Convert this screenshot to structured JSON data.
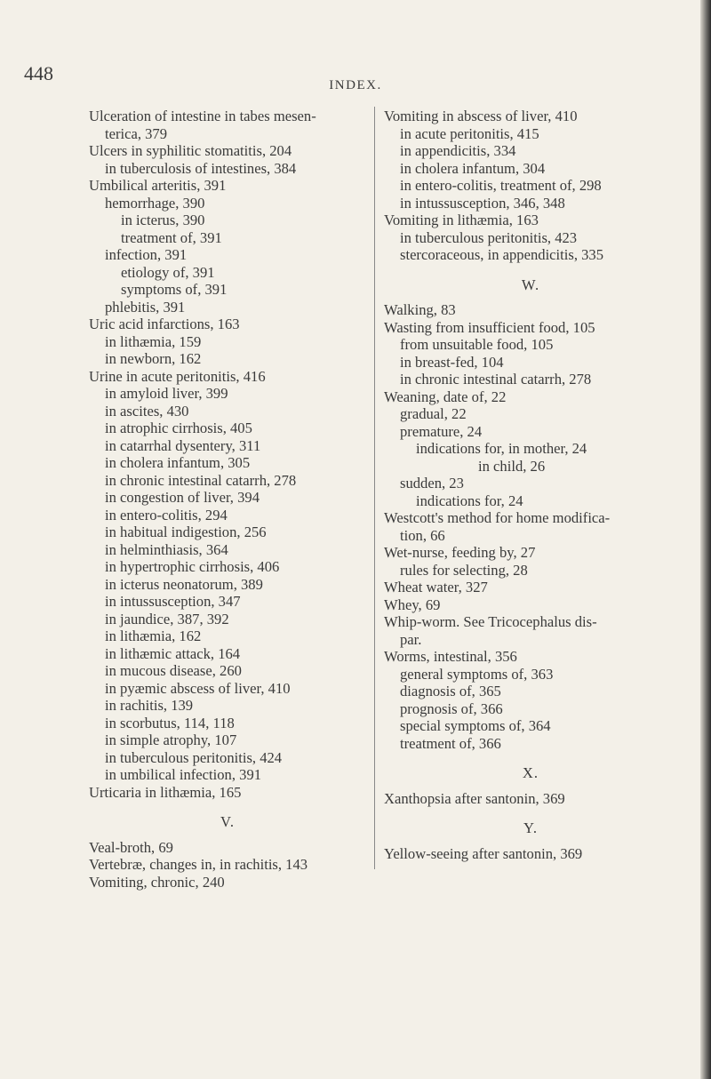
{
  "header": {
    "page_number": "448",
    "title": "INDEX."
  },
  "columns": [
    [
      {
        "lines": [
          "Ulceration of intestine in tabes mesen-",
          "terica, 379"
        ]
      },
      {
        "lines": [
          "Ulcers in syphilitic stomatitis, 204"
        ],
        "sub": [
          {
            "lines": [
              "in tuberculosis of intestines, 384"
            ]
          }
        ]
      },
      {
        "lines": [
          "Umbilical arteritis, 391"
        ],
        "sub": [
          {
            "lines": [
              "hemorrhage, 390"
            ],
            "sub": [
              {
                "lines": [
                  "in icterus, 390"
                ]
              },
              {
                "lines": [
                  "treatment of, 391"
                ]
              }
            ]
          },
          {
            "lines": [
              "infection, 391"
            ],
            "sub": [
              {
                "lines": [
                  "etiology of, 391"
                ]
              },
              {
                "lines": [
                  "symptoms of, 391"
                ]
              }
            ]
          },
          {
            "lines": [
              "phlebitis, 391"
            ]
          }
        ]
      },
      {
        "lines": [
          "Uric acid infarctions, 163"
        ],
        "sub": [
          {
            "lines": [
              "in lithæmia, 159"
            ]
          },
          {
            "lines": [
              "in newborn, 162"
            ]
          }
        ]
      },
      {
        "lines": [
          "Urine in acute peritonitis, 416"
        ],
        "sub": [
          {
            "lines": [
              "in amyloid liver, 399"
            ]
          },
          {
            "lines": [
              "in ascites, 430"
            ]
          },
          {
            "lines": [
              "in atrophic cirrhosis, 405"
            ]
          },
          {
            "lines": [
              "in catarrhal dysentery, 311"
            ]
          },
          {
            "lines": [
              "in cholera infantum, 305"
            ]
          },
          {
            "lines": [
              "in chronic intestinal catarrh, 278"
            ]
          },
          {
            "lines": [
              "in congestion of liver, 394"
            ]
          },
          {
            "lines": [
              "in entero-colitis, 294"
            ]
          },
          {
            "lines": [
              "in habitual indigestion, 256"
            ]
          },
          {
            "lines": [
              "in helminthiasis, 364"
            ]
          },
          {
            "lines": [
              "in hypertrophic cirrhosis, 406"
            ]
          },
          {
            "lines": [
              "in icterus neonatorum, 389"
            ]
          },
          {
            "lines": [
              "in intussusception, 347"
            ]
          },
          {
            "lines": [
              "in jaundice, 387, 392"
            ]
          },
          {
            "lines": [
              "in lithæmia, 162"
            ]
          },
          {
            "lines": [
              "in lithæmic attack, 164"
            ]
          },
          {
            "lines": [
              "in mucous disease, 260"
            ]
          },
          {
            "lines": [
              "in pyæmic abscess of liver, 410"
            ]
          },
          {
            "lines": [
              "in rachitis, 139"
            ]
          },
          {
            "lines": [
              "in scorbutus, 114, 118"
            ]
          },
          {
            "lines": [
              "in simple atrophy, 107"
            ]
          },
          {
            "lines": [
              "in tuberculous peritonitis, 424"
            ]
          },
          {
            "lines": [
              "in umbilical infection, 391"
            ]
          }
        ]
      },
      {
        "lines": [
          "Urticaria in lithæmia, 165"
        ]
      },
      {
        "heading": "V."
      },
      {
        "lines": [
          "Veal-broth, 69"
        ]
      },
      {
        "lines": [
          "Vertebræ, changes in, in rachitis, 143"
        ]
      },
      {
        "lines": [
          "Vomiting, chronic, 240"
        ]
      }
    ],
    [
      {
        "lines": [
          "Vomiting in abscess of liver, 410"
        ],
        "sub": [
          {
            "lines": [
              "in acute peritonitis, 415"
            ]
          },
          {
            "lines": [
              "in appendicitis, 334"
            ]
          },
          {
            "lines": [
              "in cholera infantum, 304"
            ]
          },
          {
            "lines": [
              "in entero-colitis, treatment of, 298"
            ]
          },
          {
            "lines": [
              "in intussusception, 346, 348"
            ]
          }
        ]
      },
      {
        "lines": [
          "Vomiting in lithæmia, 163"
        ],
        "sub": [
          {
            "lines": [
              "in tuberculous peritonitis, 423"
            ]
          },
          {
            "lines": [
              "stercoraceous, in appendicitis, 335"
            ]
          }
        ]
      },
      {
        "heading": "W."
      },
      {
        "lines": [
          "Walking, 83"
        ]
      },
      {
        "lines": [
          "Wasting from insufficient food, 105"
        ],
        "sub": [
          {
            "lines": [
              "from unsuitable food, 105"
            ]
          },
          {
            "lines": [
              "in breast-fed, 104"
            ]
          },
          {
            "lines": [
              "in chronic intestinal catarrh, 278"
            ]
          }
        ]
      },
      {
        "lines": [
          "Weaning, date of, 22"
        ],
        "sub": [
          {
            "lines": [
              "gradual, 22"
            ]
          },
          {
            "lines": [
              "premature, 24"
            ],
            "sub": [
              {
                "lines": [
                  "indications for, in mother, 24",
                  "in child, 26"
                ]
              }
            ]
          },
          {
            "lines": [
              "sudden, 23"
            ],
            "sub": [
              {
                "lines": [
                  "indications for, 24"
                ]
              }
            ]
          }
        ]
      },
      {
        "lines": [
          "Westcott's method for home modifica-",
          "tion, 66"
        ]
      },
      {
        "lines": [
          "Wet-nurse, feeding by, 27"
        ],
        "sub": [
          {
            "lines": [
              "rules for selecting, 28"
            ]
          }
        ]
      },
      {
        "lines": [
          "Wheat water, 327"
        ]
      },
      {
        "lines": [
          "Whey, 69"
        ]
      },
      {
        "lines": [
          "Whip-worm.  See Tricocephalus dis-",
          "par."
        ]
      },
      {
        "lines": [
          "Worms, intestinal, 356"
        ],
        "sub": [
          {
            "lines": [
              "general symptoms of, 363"
            ]
          },
          {
            "lines": [
              "diagnosis of, 365"
            ]
          },
          {
            "lines": [
              "prognosis of, 366"
            ]
          },
          {
            "lines": [
              "special symptoms of, 364"
            ]
          },
          {
            "lines": [
              "treatment of, 366"
            ]
          }
        ]
      },
      {
        "heading": "X."
      },
      {
        "lines": [
          "Xanthopsia after santonin, 369"
        ]
      },
      {
        "heading": "Y."
      },
      {
        "lines": [
          "Yellow-seeing after santonin, 369"
        ]
      }
    ]
  ]
}
